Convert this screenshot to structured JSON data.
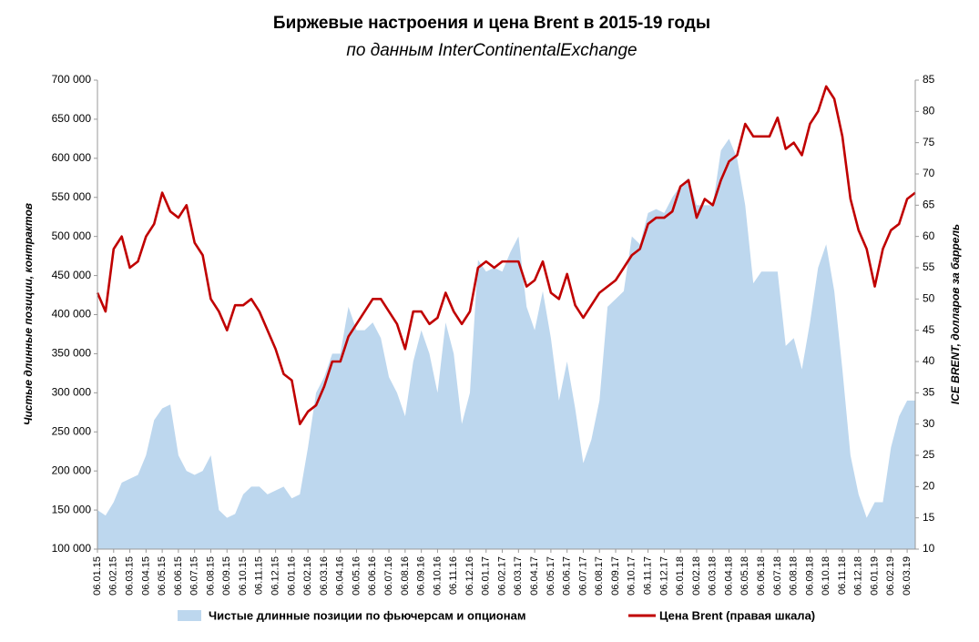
{
  "chart_data": {
    "type": "area-line",
    "title": "Биржевые настроения и цена Brent в 2015-19 годы",
    "subtitle": "по данным InterContinentalExchange",
    "y_label": "Чистые длинные позиции, контрактов",
    "y2_label": "ICE BRENT, долларов за баррель",
    "categories": [
      "06.01.15",
      null,
      "06.02.15",
      null,
      "06.03.15",
      null,
      "06.04.15",
      null,
      "06.05.15",
      null,
      "06.06.15",
      null,
      "06.07.15",
      null,
      "06.08.15",
      null,
      "06.09.15",
      null,
      "06.10.15",
      null,
      "06.11.15",
      null,
      "06.12.15",
      null,
      "06.01.16",
      null,
      "06.02.16",
      null,
      "06.03.16",
      null,
      "06.04.16",
      null,
      "06.05.16",
      null,
      "06.06.16",
      null,
      "06.07.16",
      null,
      "06.08.16",
      null,
      "06.09.16",
      null,
      "06.10.16",
      null,
      "06.11.16",
      null,
      "06.12.16",
      null,
      "06.01.17",
      null,
      "06.02.17",
      null,
      "06.03.17",
      null,
      "06.04.17",
      null,
      "06.05.17",
      null,
      "06.06.17",
      null,
      "06.07.17",
      null,
      "06.08.17",
      null,
      "06.09.17",
      null,
      "06.10.17",
      null,
      "06.11.17",
      null,
      "06.12.17",
      null,
      "06.01.18",
      null,
      "06.02.18",
      null,
      "06.03.18",
      null,
      "06.04.18",
      null,
      "06.05.18",
      null,
      "06.06.18",
      null,
      "06.07.18",
      null,
      "06.08.18",
      null,
      "06.09.18",
      null,
      "06.10.18",
      null,
      "06.11.18",
      null,
      "06.12.18",
      null,
      "06.01.19",
      null,
      "06.02.19",
      null,
      "06.03.19",
      null
    ],
    "series": [
      {
        "name": "Чистые длинные позиции по фьючерсам и опционам",
        "color": "#bdd7ee",
        "kind": "area",
        "axis": "y",
        "values": [
          150000,
          143000,
          160000,
          185000,
          190000,
          195000,
          220000,
          265000,
          280000,
          285000,
          220000,
          200000,
          195000,
          200000,
          220000,
          150000,
          140000,
          145000,
          170000,
          180000,
          180000,
          170000,
          175000,
          180000,
          165000,
          170000,
          230000,
          300000,
          320000,
          350000,
          350000,
          410000,
          380000,
          380000,
          390000,
          370000,
          320000,
          300000,
          270000,
          340000,
          380000,
          350000,
          300000,
          390000,
          350000,
          260000,
          300000,
          470000,
          455000,
          460000,
          455000,
          480000,
          500000,
          410000,
          380000,
          430000,
          370000,
          290000,
          340000,
          280000,
          210000,
          240000,
          290000,
          410000,
          420000,
          430000,
          500000,
          490000,
          530000,
          535000,
          530000,
          550000,
          565000,
          575000,
          540000,
          540000,
          540000,
          610000,
          625000,
          600000,
          540000,
          440000,
          455000,
          455000,
          455000,
          360000,
          370000,
          330000,
          390000,
          460000,
          490000,
          430000,
          330000,
          220000,
          170000,
          140000,
          160000,
          160000,
          230000,
          270000,
          290000,
          290000
        ]
      },
      {
        "name": "Цена Brent (правая шкала)",
        "color": "#c00000",
        "kind": "line",
        "axis": "y2",
        "values": [
          51,
          48,
          58,
          60,
          55,
          56,
          60,
          62,
          67,
          64,
          63,
          65,
          59,
          57,
          50,
          48,
          45,
          49,
          49,
          50,
          48,
          45,
          42,
          38,
          37,
          30,
          32,
          33,
          36,
          40,
          40,
          44,
          46,
          48,
          50,
          50,
          48,
          46,
          42,
          48,
          48,
          46,
          47,
          51,
          48,
          46,
          48,
          55,
          56,
          55,
          56,
          56,
          56,
          52,
          53,
          56,
          51,
          50,
          54,
          49,
          47,
          49,
          51,
          52,
          53,
          55,
          57,
          58,
          62,
          63,
          63,
          64,
          68,
          69,
          63,
          66,
          65,
          69,
          72,
          73,
          78,
          76,
          76,
          76,
          79,
          74,
          75,
          73,
          78,
          80,
          84,
          82,
          76,
          66,
          61,
          58,
          52,
          58,
          61,
          62,
          66,
          67
        ]
      }
    ],
    "ylim": [
      100000,
      700000
    ],
    "yticks": [
      {
        "value": 100000,
        "label": "100 000"
      },
      {
        "value": 150000,
        "label": "150 000"
      },
      {
        "value": 200000,
        "label": "200 000"
      },
      {
        "value": 250000,
        "label": "250 000"
      },
      {
        "value": 300000,
        "label": "300 000"
      },
      {
        "value": 350000,
        "label": "350 000"
      },
      {
        "value": 400000,
        "label": "400 000"
      },
      {
        "value": 450000,
        "label": "450 000"
      },
      {
        "value": 500000,
        "label": "500 000"
      },
      {
        "value": 550000,
        "label": "550 000"
      },
      {
        "value": 600000,
        "label": "600 000"
      },
      {
        "value": 650000,
        "label": "650 000"
      },
      {
        "value": 700000,
        "label": "700 000"
      }
    ],
    "y2lim": [
      10,
      85
    ],
    "y2ticks": [
      10,
      15,
      20,
      25,
      30,
      35,
      40,
      45,
      50,
      55,
      60,
      65,
      70,
      75,
      80,
      85
    ],
    "legend": "bottom"
  }
}
